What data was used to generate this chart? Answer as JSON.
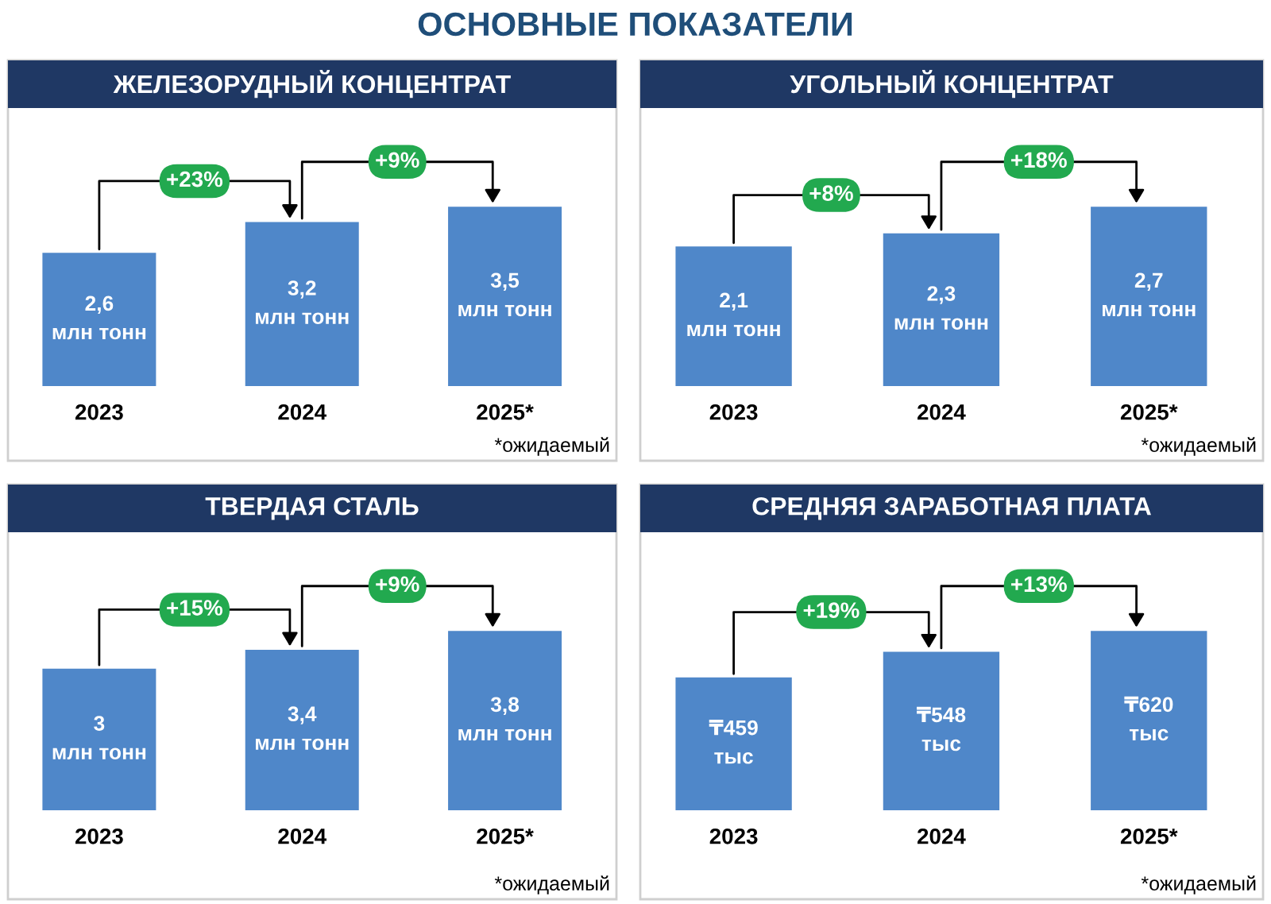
{
  "chart_data": [
    {
      "type": "other",
      "title": "ОСНОВНЫЕ ПОКАЗАТЕЛИ"
    },
    {
      "type": "bar",
      "title": "ЖЕЛЕЗОРУДНЫЙ КОНЦЕНТРАТ",
      "categories": [
        "2023",
        "2024",
        "2025*"
      ],
      "values": [
        2.6,
        3.2,
        3.5
      ],
      "color": "#4f87c9",
      "value_labels": [
        "2,6\nмлн тонн",
        "3,2\nмлн тонн",
        "3,5\nмлн тонн"
      ],
      "annotations": [
        "+23%",
        "+9%",
        "*ожидаемый"
      ]
    },
    {
      "type": "bar",
      "title": "УГОЛЬНЫЙ КОНЦЕНТРАТ",
      "categories": [
        "2023",
        "2024",
        "2025*"
      ],
      "values": [
        2.1,
        2.3,
        2.7
      ],
      "color": "#4f87c9",
      "value_labels": [
        "2,1\nмлн тонн",
        "2,3\nмлн тонн",
        "2,7\nмлн тонн"
      ],
      "annotations": [
        "+8%",
        "+18%",
        "*ожидаемый"
      ]
    },
    {
      "type": "bar",
      "title": "ТВЕРДАЯ СТАЛЬ",
      "categories": [
        "2023",
        "2024",
        "2025*"
      ],
      "values": [
        3,
        3.4,
        3.8
      ],
      "color": "#4f87c9",
      "value_labels": [
        "3\nмлн тонн",
        "3,4\nмлн тонн",
        "3,8\nмлн тонн"
      ],
      "annotations": [
        "+15%",
        "+9%",
        "*ожидаемый"
      ]
    },
    {
      "type": "bar",
      "title": "СРЕДНЯЯ ЗАРАБОТНАЯ ПЛАТА",
      "categories": [
        "2023",
        "2024",
        "2025*"
      ],
      "values": [
        459,
        548,
        620
      ],
      "color": "#4f87c9",
      "value_labels": [
        "₸459\nтыс",
        "₸548\nтыс",
        "₸620\nтыс"
      ],
      "annotations": [
        "+19%",
        "+13%",
        "*ожидаемый"
      ]
    }
  ]
}
